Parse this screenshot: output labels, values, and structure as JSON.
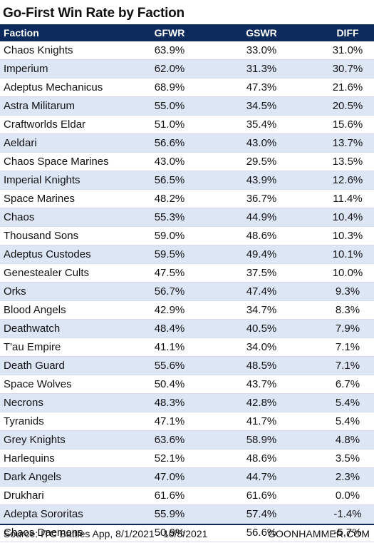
{
  "chart_data": {
    "type": "table",
    "title": "Go-First Win Rate by Faction",
    "columns": [
      "Faction",
      "GFWR",
      "GSWR",
      "DIFF"
    ],
    "rows": [
      [
        "Chaos Knights",
        "63.9%",
        "33.0%",
        "31.0%"
      ],
      [
        "Imperium",
        "62.0%",
        "31.3%",
        "30.7%"
      ],
      [
        "Adeptus Mechanicus",
        "68.9%",
        "47.3%",
        "21.6%"
      ],
      [
        "Astra Militarum",
        "55.0%",
        "34.5%",
        "20.5%"
      ],
      [
        "Craftworlds Eldar",
        "51.0%",
        "35.4%",
        "15.6%"
      ],
      [
        "Aeldari",
        "56.6%",
        "43.0%",
        "13.7%"
      ],
      [
        "Chaos Space Marines",
        "43.0%",
        "29.5%",
        "13.5%"
      ],
      [
        "Imperial Knights",
        "56.5%",
        "43.9%",
        "12.6%"
      ],
      [
        "Space Marines",
        "48.2%",
        "36.7%",
        "11.4%"
      ],
      [
        "Chaos",
        "55.3%",
        "44.9%",
        "10.4%"
      ],
      [
        "Thousand Sons",
        "59.0%",
        "48.6%",
        "10.3%"
      ],
      [
        "Adeptus Custodes",
        "59.5%",
        "49.4%",
        "10.1%"
      ],
      [
        "Genestealer Cults",
        "47.5%",
        "37.5%",
        "10.0%"
      ],
      [
        "Orks",
        "56.7%",
        "47.4%",
        "9.3%"
      ],
      [
        "Blood Angels",
        "42.9%",
        "34.7%",
        "8.3%"
      ],
      [
        "Deathwatch",
        "48.4%",
        "40.5%",
        "7.9%"
      ],
      [
        "T'au Empire",
        "41.1%",
        "34.0%",
        "7.1%"
      ],
      [
        "Death Guard",
        "55.6%",
        "48.5%",
        "7.1%"
      ],
      [
        "Space Wolves",
        "50.4%",
        "43.7%",
        "6.7%"
      ],
      [
        "Necrons",
        "48.3%",
        "42.8%",
        "5.4%"
      ],
      [
        "Tyranids",
        "47.1%",
        "41.7%",
        "5.4%"
      ],
      [
        "Grey Knights",
        "63.6%",
        "58.9%",
        "4.8%"
      ],
      [
        "Harlequins",
        "52.1%",
        "48.6%",
        "3.5%"
      ],
      [
        "Dark Angels",
        "47.0%",
        "44.7%",
        "2.3%"
      ],
      [
        "Drukhari",
        "61.6%",
        "61.6%",
        "0.0%"
      ],
      [
        "Adepta Sororitas",
        "55.9%",
        "57.4%",
        "-1.4%"
      ],
      [
        "Chaos Daemons",
        "50.9%",
        "56.6%",
        "-5.7%"
      ]
    ]
  },
  "footer": {
    "source": "Source: ITC Battles App, 8/1/2021 - 10/5/2021",
    "brand": "GOONHAMMER.COM"
  }
}
